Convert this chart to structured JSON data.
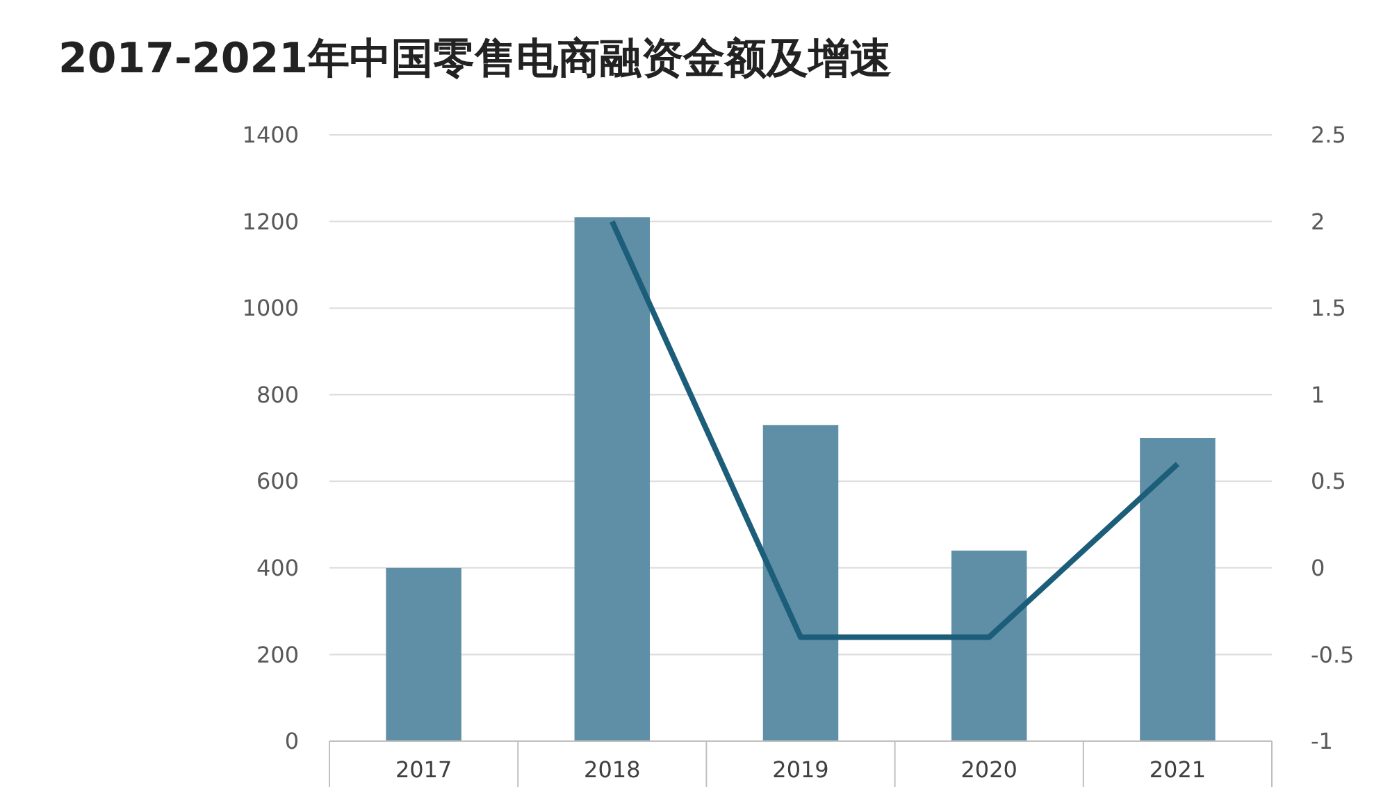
{
  "chart_data": {
    "type": "bar",
    "title": "2017-2021年中国零售电商融资金额及增速",
    "categories": [
      "2017",
      "2018",
      "2019",
      "2020",
      "2021"
    ],
    "series": [
      {
        "color": "#5e8fa6",
        "values": [
          400,
          1210,
          730,
          440,
          700
        ]
      },
      {
        "type": "line",
        "axis": "y2",
        "color": "#1c5e7a",
        "values": [
          null,
          2.0,
          -0.4,
          -0.4,
          0.6
        ]
      }
    ],
    "ylim": [
      0,
      1400
    ],
    "yticks": [
      0,
      200,
      400,
      600,
      800,
      1000,
      1200,
      1400
    ],
    "y2lim": [
      -1,
      2.5
    ],
    "y2ticks": [
      -1,
      -0.5,
      0,
      0.5,
      1,
      1.5,
      2,
      2.5
    ],
    "grid": "y",
    "marker": "none"
  }
}
